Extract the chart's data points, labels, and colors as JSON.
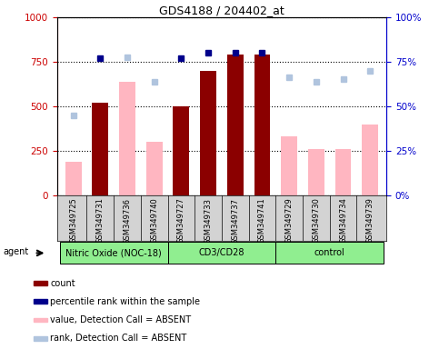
{
  "title": "GDS4188 / 204402_at",
  "samples": [
    "GSM349725",
    "GSM349731",
    "GSM349736",
    "GSM349740",
    "GSM349727",
    "GSM349733",
    "GSM349737",
    "GSM349741",
    "GSM349729",
    "GSM349730",
    "GSM349734",
    "GSM349739"
  ],
  "groups": [
    {
      "label": "Nitric Oxide (NOC-18)",
      "start": 0,
      "end": 4
    },
    {
      "label": "CD3/CD28",
      "start": 4,
      "end": 8
    },
    {
      "label": "control",
      "start": 8,
      "end": 12
    }
  ],
  "count_values": [
    null,
    520,
    null,
    null,
    500,
    700,
    790,
    790,
    null,
    null,
    null,
    null
  ],
  "absent_value": [
    190,
    null,
    640,
    300,
    null,
    null,
    null,
    null,
    330,
    260,
    260,
    400
  ],
  "percentile_rank_present": [
    null,
    77,
    null,
    null,
    77,
    80,
    80,
    80,
    null,
    null,
    null,
    null
  ],
  "percentile_rank_absent": [
    45,
    null,
    77.5,
    64,
    null,
    null,
    null,
    null,
    66.5,
    64,
    65.5,
    70
  ],
  "ylim_left": [
    0,
    1000
  ],
  "ylim_right": [
    0,
    100
  ],
  "yticks_left": [
    0,
    250,
    500,
    750,
    1000
  ],
  "yticks_right": [
    0,
    25,
    50,
    75,
    100
  ],
  "bar_color_present": "#8B0000",
  "bar_color_absent": "#FFB6C1",
  "dot_color_present": "#00008B",
  "dot_color_absent": "#B0C4DE",
  "left_axis_color": "#cc0000",
  "right_axis_color": "#0000cc",
  "group_color": "#90EE90",
  "sample_bg_color": "#d3d3d3",
  "bg_color": "#ffffff"
}
